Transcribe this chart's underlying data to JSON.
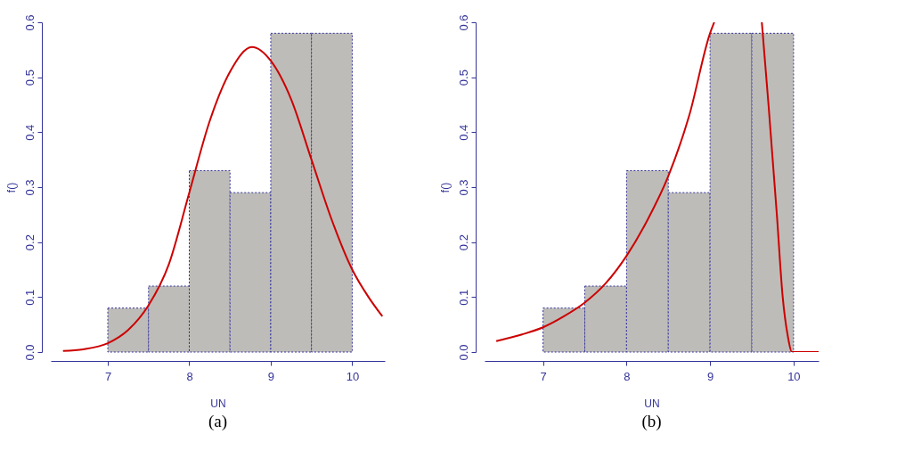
{
  "chart_data": [
    {
      "type": "histogram",
      "title": "(a)",
      "xlabel": "UN",
      "ylabel": "f()",
      "bins": [
        7,
        7.5,
        8,
        8.5,
        9,
        9.5,
        10
      ],
      "values": [
        0.08,
        0.12,
        0.33,
        0.29,
        0.58,
        0.58
      ],
      "color": "#bebcb8",
      "xlim": [
        6.3,
        10.4
      ],
      "xticks": [
        7,
        8,
        9,
        10
      ],
      "ylim": [
        0,
        0.6
      ],
      "yticks": [
        {
          "value": 0,
          "label": "0.0"
        },
        0.1,
        0.2,
        0.3,
        0.4,
        0.5,
        0.6
      ],
      "grid": false,
      "series": [
        {
          "type": "line",
          "color": "#cc0000",
          "x": [
            6.45,
            6.7,
            7.0,
            7.25,
            7.5,
            7.75,
            8.0,
            8.25,
            8.5,
            8.77,
            9.0,
            9.25,
            9.5,
            9.75,
            10.0,
            10.2,
            10.37
          ],
          "values": [
            0.002,
            0.005,
            0.016,
            0.04,
            0.085,
            0.16,
            0.29,
            0.42,
            0.51,
            0.555,
            0.53,
            0.46,
            0.35,
            0.24,
            0.15,
            0.1,
            0.065
          ]
        }
      ]
    },
    {
      "type": "histogram",
      "title": "(b)",
      "xlabel": "UN",
      "ylabel": "f()",
      "bins": [
        7,
        7.5,
        8,
        8.5,
        9,
        9.5,
        10
      ],
      "values": [
        0.08,
        0.12,
        0.33,
        0.29,
        0.58,
        0.58
      ],
      "color": "#bebcb8",
      "xlim": [
        6.3,
        10.3
      ],
      "xticks": [
        7,
        8,
        9,
        10
      ],
      "ylim": [
        0,
        0.6
      ],
      "yticks": [
        {
          "value": 0,
          "label": "0.0"
        },
        0.1,
        0.2,
        0.3,
        0.4,
        0.5,
        0.6
      ],
      "grid": false,
      "series": [
        {
          "type": "line",
          "color": "#cc0000",
          "x": [
            6.44,
            6.75,
            7.0,
            7.25,
            7.5,
            7.75,
            8.0,
            8.25,
            8.5,
            8.75,
            9.0,
            9.05
          ],
          "values": [
            0.02,
            0.032,
            0.045,
            0.065,
            0.09,
            0.125,
            0.175,
            0.24,
            0.32,
            0.43,
            0.58,
            0.6
          ]
        },
        {
          "type": "line",
          "color": "#cc0000",
          "x": [
            9.62,
            9.7,
            9.8,
            9.87,
            9.93,
            9.98,
            10.3
          ],
          "values": [
            0.6,
            0.45,
            0.25,
            0.1,
            0.03,
            0,
            0
          ]
        }
      ]
    }
  ]
}
